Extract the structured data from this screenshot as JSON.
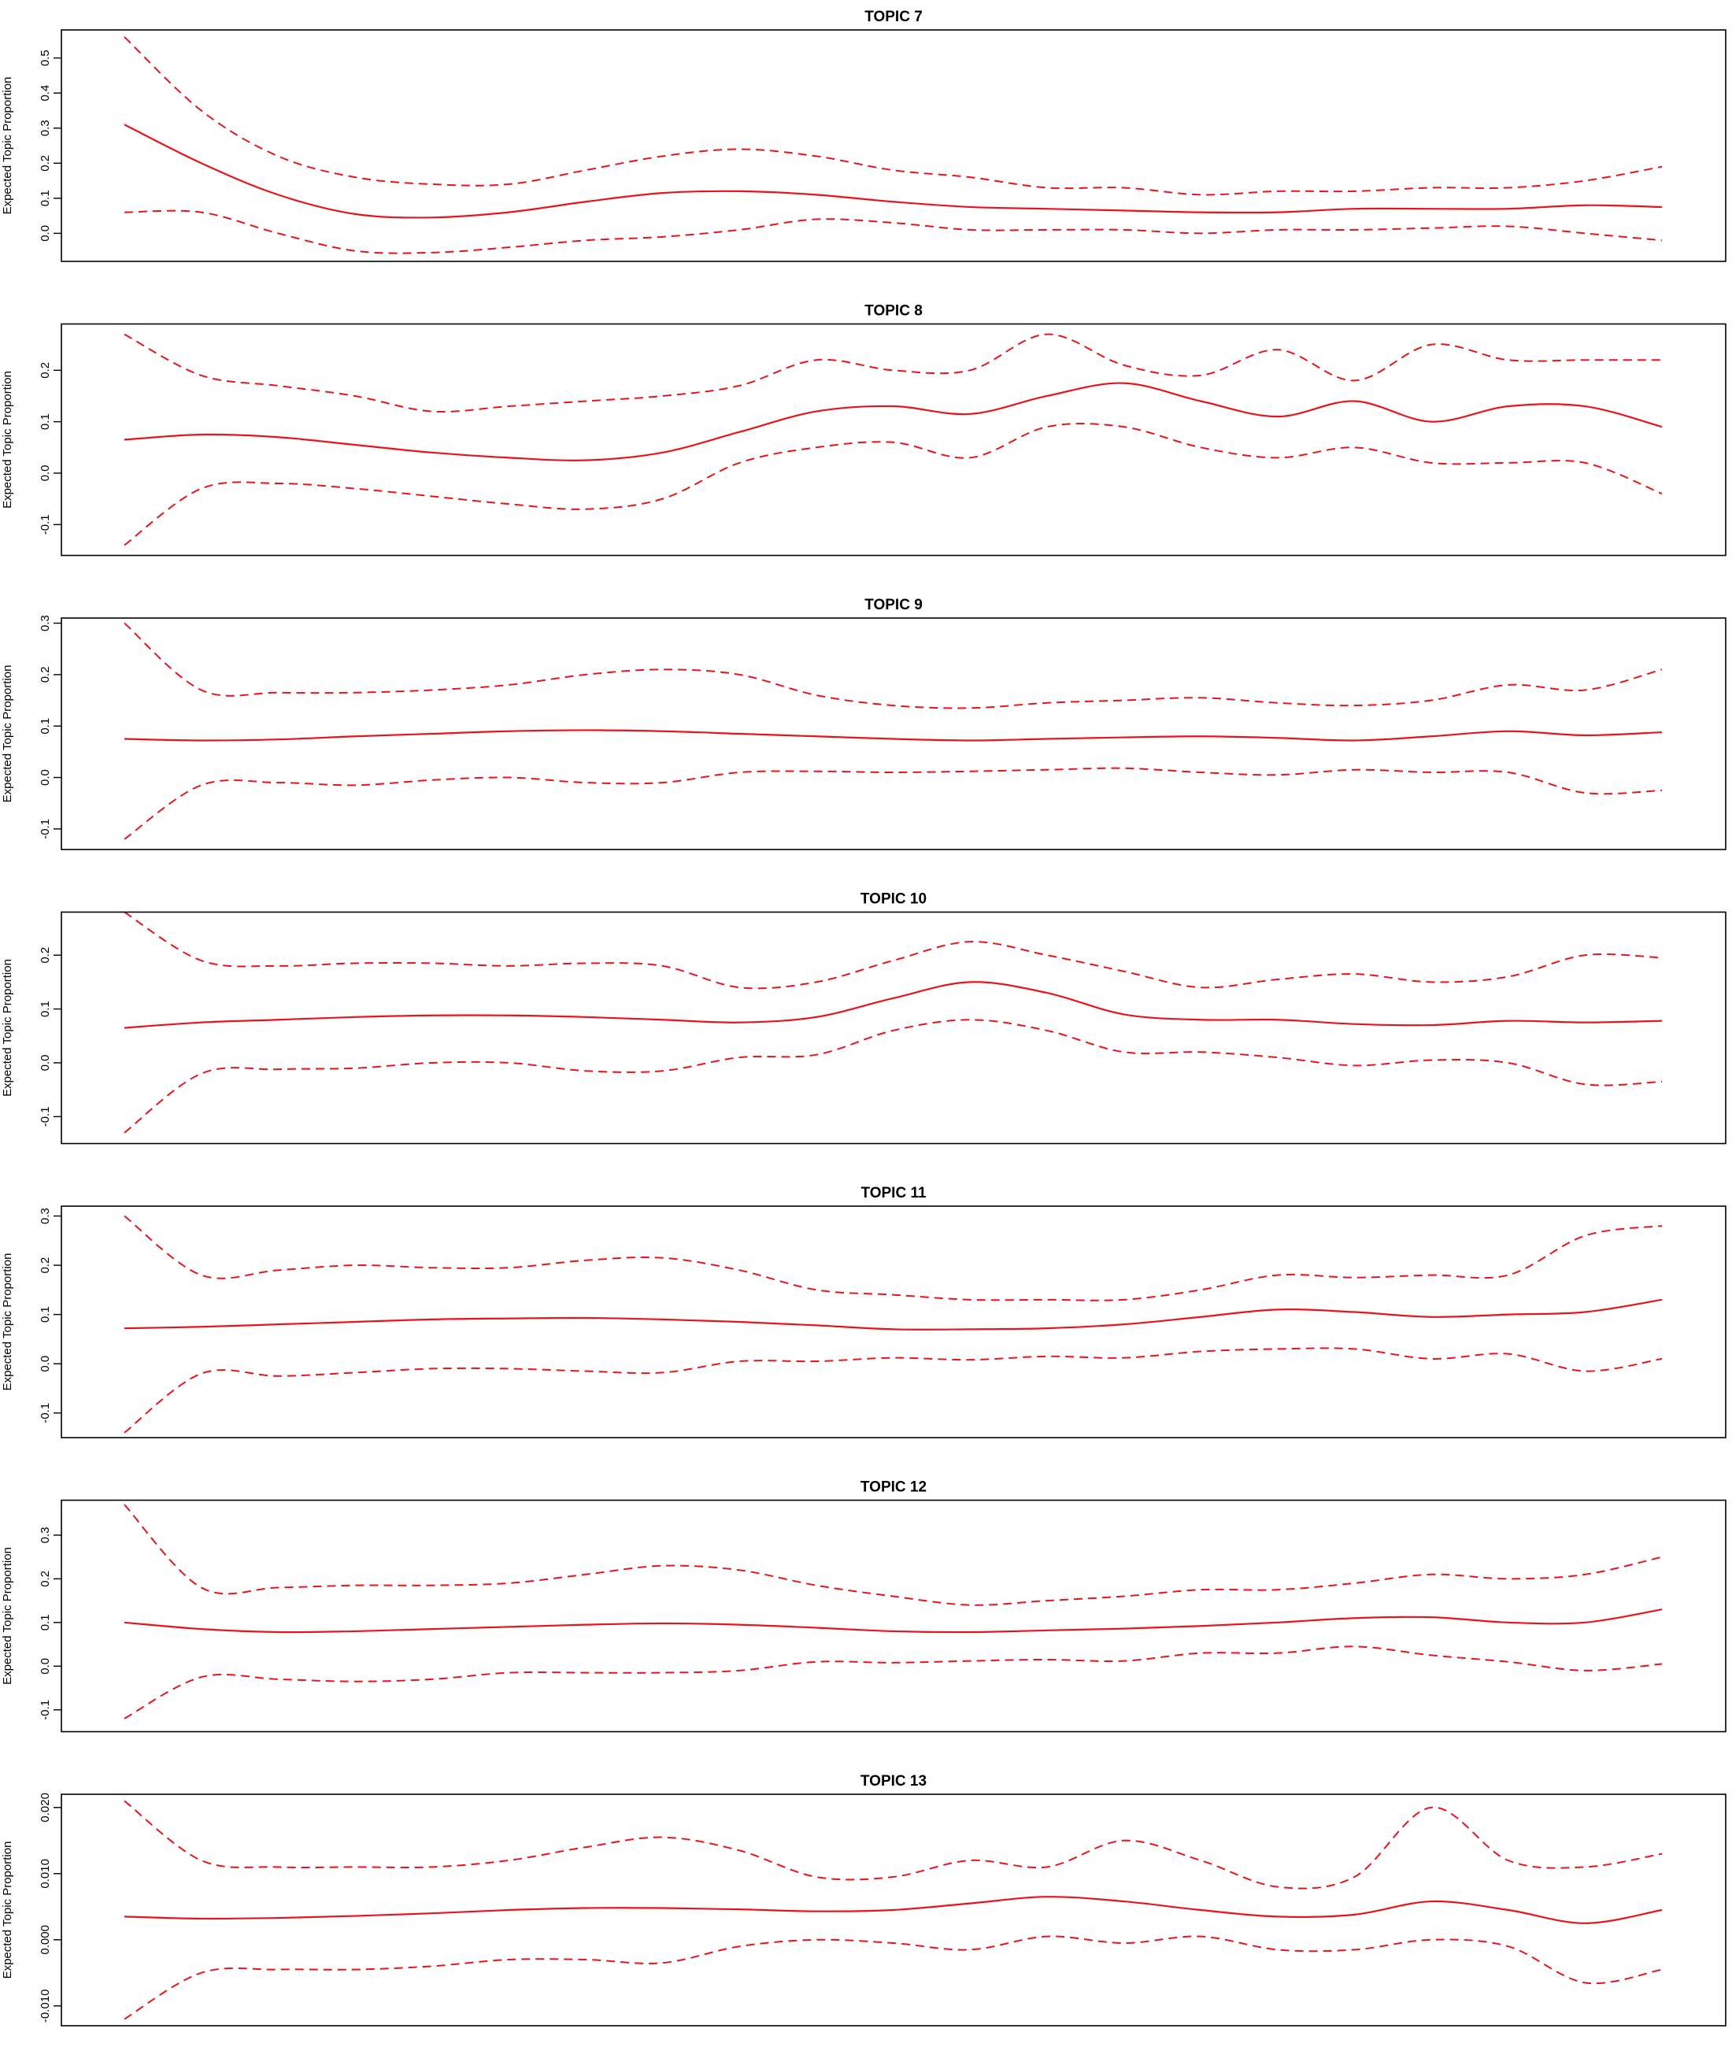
{
  "chart_data": [
    {
      "type": "line",
      "title": "TOPIC 7",
      "ylabel": "Expected Topic Proportion",
      "xlabel": "",
      "ylim": [
        -0.08,
        0.58
      ],
      "yticks": [
        0.0,
        0.1,
        0.2,
        0.3,
        0.4,
        0.5
      ],
      "ytick_labels": [
        "0.0",
        "0.1",
        "0.2",
        "0.3",
        "0.4",
        "0.5"
      ],
      "x": [
        0,
        5,
        10,
        15,
        20,
        25,
        30,
        35,
        40,
        45,
        50,
        55,
        60,
        65,
        70,
        75,
        80,
        85,
        90,
        95,
        100
      ],
      "series": [
        {
          "name": "upper",
          "style": "dashed",
          "values": [
            0.56,
            0.35,
            0.22,
            0.16,
            0.14,
            0.14,
            0.18,
            0.22,
            0.24,
            0.22,
            0.18,
            0.16,
            0.13,
            0.13,
            0.11,
            0.12,
            0.12,
            0.13,
            0.13,
            0.15,
            0.19
          ]
        },
        {
          "name": "mean",
          "style": "solid",
          "values": [
            0.31,
            0.2,
            0.11,
            0.055,
            0.045,
            0.06,
            0.09,
            0.115,
            0.12,
            0.11,
            0.09,
            0.075,
            0.07,
            0.065,
            0.06,
            0.06,
            0.07,
            0.07,
            0.07,
            0.08,
            0.075
          ]
        },
        {
          "name": "lower",
          "style": "dashed",
          "values": [
            0.06,
            0.06,
            0.0,
            -0.05,
            -0.055,
            -0.04,
            -0.02,
            -0.01,
            0.01,
            0.04,
            0.03,
            0.01,
            0.01,
            0.01,
            0.0,
            0.01,
            0.01,
            0.015,
            0.02,
            0.0,
            -0.02
          ]
        }
      ]
    },
    {
      "type": "line",
      "title": "TOPIC 8",
      "ylabel": "Expected Topic Proportion",
      "xlabel": "",
      "ylim": [
        -0.16,
        0.29
      ],
      "yticks": [
        -0.1,
        0.0,
        0.1,
        0.2
      ],
      "ytick_labels": [
        "-0.1",
        "0.0",
        "0.1",
        "0.2"
      ],
      "x": [
        0,
        5,
        10,
        15,
        20,
        25,
        30,
        35,
        40,
        45,
        50,
        55,
        60,
        65,
        70,
        75,
        80,
        85,
        90,
        95,
        100
      ],
      "series": [
        {
          "name": "upper",
          "style": "dashed",
          "values": [
            0.27,
            0.19,
            0.17,
            0.15,
            0.12,
            0.13,
            0.14,
            0.15,
            0.17,
            0.22,
            0.2,
            0.2,
            0.27,
            0.21,
            0.19,
            0.24,
            0.18,
            0.25,
            0.22,
            0.22,
            0.22
          ]
        },
        {
          "name": "mean",
          "style": "solid",
          "values": [
            0.065,
            0.075,
            0.07,
            0.055,
            0.04,
            0.03,
            0.025,
            0.04,
            0.08,
            0.12,
            0.13,
            0.115,
            0.15,
            0.175,
            0.14,
            0.11,
            0.14,
            0.1,
            0.13,
            0.13,
            0.09
          ]
        },
        {
          "name": "lower",
          "style": "dashed",
          "values": [
            -0.14,
            -0.03,
            -0.02,
            -0.03,
            -0.045,
            -0.06,
            -0.07,
            -0.05,
            0.02,
            0.05,
            0.06,
            0.03,
            0.09,
            0.09,
            0.05,
            0.03,
            0.05,
            0.02,
            0.02,
            0.02,
            -0.04
          ]
        }
      ]
    },
    {
      "type": "line",
      "title": "TOPIC 9",
      "ylabel": "Expected Topic Proportion",
      "xlabel": "",
      "ylim": [
        -0.14,
        0.31
      ],
      "yticks": [
        -0.1,
        0.0,
        0.1,
        0.2,
        0.3
      ],
      "ytick_labels": [
        "-0.1",
        "0.0",
        "0.1",
        "0.2",
        "0.3"
      ],
      "x": [
        0,
        5,
        10,
        15,
        20,
        25,
        30,
        35,
        40,
        45,
        50,
        55,
        60,
        65,
        70,
        75,
        80,
        85,
        90,
        95,
        100
      ],
      "series": [
        {
          "name": "upper",
          "style": "dashed",
          "values": [
            0.3,
            0.17,
            0.165,
            0.165,
            0.17,
            0.18,
            0.2,
            0.21,
            0.2,
            0.16,
            0.14,
            0.135,
            0.145,
            0.15,
            0.155,
            0.145,
            0.14,
            0.15,
            0.18,
            0.17,
            0.21
          ]
        },
        {
          "name": "mean",
          "style": "solid",
          "values": [
            0.075,
            0.072,
            0.074,
            0.08,
            0.085,
            0.09,
            0.092,
            0.09,
            0.085,
            0.08,
            0.075,
            0.072,
            0.075,
            0.078,
            0.08,
            0.077,
            0.072,
            0.08,
            0.09,
            0.082,
            0.088
          ]
        },
        {
          "name": "lower",
          "style": "dashed",
          "values": [
            -0.12,
            -0.015,
            -0.01,
            -0.015,
            -0.005,
            0.0,
            -0.01,
            -0.01,
            0.01,
            0.012,
            0.01,
            0.012,
            0.015,
            0.018,
            0.01,
            0.005,
            0.015,
            0.01,
            0.01,
            -0.03,
            -0.025
          ]
        }
      ]
    },
    {
      "type": "line",
      "title": "TOPIC 10",
      "ylabel": "Expected Topic Proportion",
      "xlabel": "",
      "ylim": [
        -0.15,
        0.28
      ],
      "yticks": [
        -0.1,
        0.0,
        0.1,
        0.2
      ],
      "ytick_labels": [
        "-0.1",
        "0.0",
        "0.1",
        "0.2"
      ],
      "x": [
        0,
        5,
        10,
        15,
        20,
        25,
        30,
        35,
        40,
        45,
        50,
        55,
        60,
        65,
        70,
        75,
        80,
        85,
        90,
        95,
        100
      ],
      "series": [
        {
          "name": "upper",
          "style": "dashed",
          "values": [
            0.28,
            0.19,
            0.18,
            0.185,
            0.185,
            0.18,
            0.185,
            0.18,
            0.14,
            0.15,
            0.19,
            0.225,
            0.2,
            0.17,
            0.14,
            0.155,
            0.165,
            0.15,
            0.16,
            0.2,
            0.195
          ]
        },
        {
          "name": "mean",
          "style": "solid",
          "values": [
            0.065,
            0.075,
            0.08,
            0.085,
            0.088,
            0.088,
            0.085,
            0.08,
            0.075,
            0.085,
            0.12,
            0.15,
            0.13,
            0.09,
            0.08,
            0.08,
            0.072,
            0.07,
            0.078,
            0.075,
            0.078
          ]
        },
        {
          "name": "lower",
          "style": "dashed",
          "values": [
            -0.13,
            -0.02,
            -0.012,
            -0.01,
            0.0,
            0.0,
            -0.015,
            -0.015,
            0.01,
            0.015,
            0.06,
            0.08,
            0.06,
            0.02,
            0.02,
            0.01,
            -0.005,
            0.005,
            0.0,
            -0.04,
            -0.035
          ]
        }
      ]
    },
    {
      "type": "line",
      "title": "TOPIC 11",
      "ylabel": "Expected Topic Proportion",
      "xlabel": "",
      "ylim": [
        -0.15,
        0.32
      ],
      "yticks": [
        -0.1,
        0.0,
        0.1,
        0.2,
        0.3
      ],
      "ytick_labels": [
        "-0.1",
        "0.0",
        "0.1",
        "0.2",
        "0.3"
      ],
      "x": [
        0,
        5,
        10,
        15,
        20,
        25,
        30,
        35,
        40,
        45,
        50,
        55,
        60,
        65,
        70,
        75,
        80,
        85,
        90,
        95,
        100
      ],
      "series": [
        {
          "name": "upper",
          "style": "dashed",
          "values": [
            0.3,
            0.18,
            0.19,
            0.2,
            0.195,
            0.195,
            0.21,
            0.215,
            0.19,
            0.15,
            0.14,
            0.13,
            0.13,
            0.13,
            0.15,
            0.18,
            0.175,
            0.18,
            0.18,
            0.26,
            0.28
          ]
        },
        {
          "name": "mean",
          "style": "solid",
          "values": [
            0.072,
            0.075,
            0.08,
            0.085,
            0.09,
            0.092,
            0.093,
            0.09,
            0.085,
            0.078,
            0.07,
            0.07,
            0.072,
            0.08,
            0.095,
            0.11,
            0.105,
            0.095,
            0.1,
            0.105,
            0.13
          ]
        },
        {
          "name": "lower",
          "style": "dashed",
          "values": [
            -0.14,
            -0.02,
            -0.025,
            -0.018,
            -0.01,
            -0.01,
            -0.015,
            -0.018,
            0.005,
            0.005,
            0.012,
            0.008,
            0.015,
            0.012,
            0.025,
            0.03,
            0.03,
            0.01,
            0.02,
            -0.015,
            0.01
          ]
        }
      ]
    },
    {
      "type": "line",
      "title": "TOPIC 12",
      "ylabel": "Expected Topic Proportion",
      "xlabel": "",
      "ylim": [
        -0.15,
        0.38
      ],
      "yticks": [
        -0.1,
        0.0,
        0.1,
        0.2,
        0.3
      ],
      "ytick_labels": [
        "-0.1",
        "0.0",
        "0.1",
        "0.2",
        "0.3"
      ],
      "x": [
        0,
        5,
        10,
        15,
        20,
        25,
        30,
        35,
        40,
        45,
        50,
        55,
        60,
        65,
        70,
        75,
        80,
        85,
        90,
        95,
        100
      ],
      "series": [
        {
          "name": "upper",
          "style": "dashed",
          "values": [
            0.37,
            0.18,
            0.18,
            0.185,
            0.185,
            0.19,
            0.21,
            0.23,
            0.22,
            0.185,
            0.16,
            0.14,
            0.15,
            0.16,
            0.175,
            0.175,
            0.19,
            0.21,
            0.2,
            0.21,
            0.25
          ]
        },
        {
          "name": "mean",
          "style": "solid",
          "values": [
            0.1,
            0.085,
            0.078,
            0.08,
            0.085,
            0.09,
            0.095,
            0.098,
            0.095,
            0.088,
            0.08,
            0.078,
            0.082,
            0.086,
            0.092,
            0.1,
            0.11,
            0.112,
            0.1,
            0.1,
            0.13
          ]
        },
        {
          "name": "lower",
          "style": "dashed",
          "values": [
            -0.12,
            -0.025,
            -0.03,
            -0.035,
            -0.03,
            -0.015,
            -0.015,
            -0.015,
            -0.01,
            0.01,
            0.008,
            0.012,
            0.015,
            0.012,
            0.03,
            0.03,
            0.045,
            0.025,
            0.01,
            -0.01,
            0.005
          ]
        }
      ]
    },
    {
      "type": "line",
      "title": "TOPIC 13",
      "ylabel": "Expected Topic Proportion",
      "xlabel": "",
      "ylim": [
        -0.013,
        0.022
      ],
      "yticks": [
        -0.01,
        0.0,
        0.01,
        0.02
      ],
      "ytick_labels": [
        "-0.010",
        "0.000",
        "0.010",
        "0.020"
      ],
      "x": [
        0,
        5,
        10,
        15,
        20,
        25,
        30,
        35,
        40,
        45,
        50,
        55,
        60,
        65,
        70,
        75,
        80,
        85,
        90,
        95,
        100
      ],
      "series": [
        {
          "name": "upper",
          "style": "dashed",
          "values": [
            0.021,
            0.012,
            0.011,
            0.011,
            0.011,
            0.012,
            0.014,
            0.0155,
            0.0135,
            0.0095,
            0.0095,
            0.012,
            0.011,
            0.015,
            0.012,
            0.008,
            0.0095,
            0.02,
            0.012,
            0.011,
            0.013
          ]
        },
        {
          "name": "mean",
          "style": "solid",
          "values": [
            0.0035,
            0.0032,
            0.0033,
            0.0036,
            0.004,
            0.0045,
            0.0048,
            0.0048,
            0.0046,
            0.0043,
            0.0045,
            0.0055,
            0.0065,
            0.0058,
            0.0045,
            0.0035,
            0.0038,
            0.0058,
            0.0045,
            0.0025,
            0.0045
          ]
        },
        {
          "name": "lower",
          "style": "dashed",
          "values": [
            -0.012,
            -0.005,
            -0.0045,
            -0.0045,
            -0.004,
            -0.003,
            -0.003,
            -0.0035,
            -0.001,
            0.0,
            -0.0005,
            -0.0015,
            0.0005,
            -0.0005,
            0.0005,
            -0.0015,
            -0.0015,
            0.0,
            -0.001,
            -0.0065,
            -0.0045
          ]
        }
      ]
    }
  ]
}
